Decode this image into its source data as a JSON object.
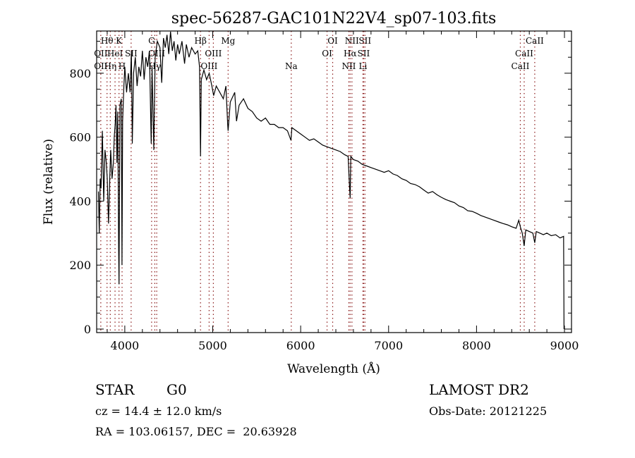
{
  "chart_data": {
    "type": "line",
    "title": "spec-56287-GAC101N22V4_sp07-103.fits",
    "xlabel": "Wavelength (Å)",
    "ylabel": "Flux (relative)",
    "xlim": [
      3680,
      9080
    ],
    "ylim": [
      -11,
      932
    ],
    "xticks": [
      4000,
      5000,
      6000,
      7000,
      8000,
      9000
    ],
    "yticks": [
      0,
      200,
      400,
      600,
      800
    ],
    "grid": false,
    "line_color": "#000000",
    "marker_color": "#8b1a1a",
    "series": [
      {
        "name": "spectrum",
        "points": [
          [
            3700,
            430
          ],
          [
            3710,
            300
          ],
          [
            3720,
            470
          ],
          [
            3730,
            440
          ],
          [
            3745,
            620
          ],
          [
            3760,
            400
          ],
          [
            3775,
            560
          ],
          [
            3790,
            520
          ],
          [
            3800,
            470
          ],
          [
            3815,
            330
          ],
          [
            3830,
            480
          ],
          [
            3840,
            560
          ],
          [
            3855,
            470
          ],
          [
            3870,
            520
          ],
          [
            3880,
            600
          ],
          [
            3890,
            640
          ],
          [
            3900,
            700
          ],
          [
            3910,
            520
          ],
          [
            3920,
            680
          ],
          [
            3930,
            240
          ],
          [
            3934,
            140
          ],
          [
            3945,
            700
          ],
          [
            3960,
            720
          ],
          [
            3968,
            200
          ],
          [
            3975,
            650
          ],
          [
            3990,
            760
          ],
          [
            4000,
            820
          ],
          [
            4020,
            740
          ],
          [
            4040,
            800
          ],
          [
            4060,
            740
          ],
          [
            4075,
            870
          ],
          [
            4085,
            580
          ],
          [
            4100,
            800
          ],
          [
            4120,
            850
          ],
          [
            4140,
            760
          ],
          [
            4160,
            820
          ],
          [
            4180,
            790
          ],
          [
            4200,
            870
          ],
          [
            4220,
            780
          ],
          [
            4240,
            850
          ],
          [
            4260,
            820
          ],
          [
            4280,
            870
          ],
          [
            4300,
            580
          ],
          [
            4310,
            820
          ],
          [
            4330,
            560
          ],
          [
            4345,
            850
          ],
          [
            4370,
            900
          ],
          [
            4400,
            880
          ],
          [
            4420,
            770
          ],
          [
            4440,
            910
          ],
          [
            4460,
            880
          ],
          [
            4480,
            920
          ],
          [
            4500,
            860
          ],
          [
            4520,
            930
          ],
          [
            4540,
            870
          ],
          [
            4560,
            900
          ],
          [
            4580,
            840
          ],
          [
            4600,
            890
          ],
          [
            4620,
            860
          ],
          [
            4650,
            900
          ],
          [
            4680,
            830
          ],
          [
            4700,
            890
          ],
          [
            4730,
            850
          ],
          [
            4760,
            880
          ],
          [
            4800,
            860
          ],
          [
            4830,
            870
          ],
          [
            4850,
            820
          ],
          [
            4861,
            540
          ],
          [
            4870,
            780
          ],
          [
            4900,
            810
          ],
          [
            4930,
            780
          ],
          [
            4960,
            800
          ],
          [
            4990,
            760
          ],
          [
            5010,
            730
          ],
          [
            5040,
            760
          ],
          [
            5080,
            740
          ],
          [
            5120,
            720
          ],
          [
            5150,
            760
          ],
          [
            5170,
            640
          ],
          [
            5175,
            620
          ],
          [
            5200,
            710
          ],
          [
            5250,
            740
          ],
          [
            5270,
            650
          ],
          [
            5300,
            700
          ],
          [
            5350,
            720
          ],
          [
            5400,
            690
          ],
          [
            5450,
            680
          ],
          [
            5500,
            660
          ],
          [
            5550,
            650
          ],
          [
            5600,
            660
          ],
          [
            5650,
            640
          ],
          [
            5700,
            640
          ],
          [
            5750,
            630
          ],
          [
            5800,
            630
          ],
          [
            5850,
            620
          ],
          [
            5890,
            590
          ],
          [
            5900,
            630
          ],
          [
            5950,
            620
          ],
          [
            6000,
            610
          ],
          [
            6050,
            600
          ],
          [
            6100,
            590
          ],
          [
            6150,
            595
          ],
          [
            6200,
            585
          ],
          [
            6250,
            575
          ],
          [
            6300,
            570
          ],
          [
            6350,
            565
          ],
          [
            6400,
            560
          ],
          [
            6450,
            555
          ],
          [
            6500,
            545
          ],
          [
            6540,
            540
          ],
          [
            6555,
            450
          ],
          [
            6563,
            410
          ],
          [
            6570,
            540
          ],
          [
            6600,
            530
          ],
          [
            6650,
            525
          ],
          [
            6700,
            515
          ],
          [
            6750,
            510
          ],
          [
            6800,
            505
          ],
          [
            6850,
            500
          ],
          [
            6900,
            495
          ],
          [
            6950,
            490
          ],
          [
            7000,
            495
          ],
          [
            7050,
            485
          ],
          [
            7100,
            480
          ],
          [
            7150,
            470
          ],
          [
            7200,
            465
          ],
          [
            7250,
            455
          ],
          [
            7300,
            452
          ],
          [
            7350,
            445
          ],
          [
            7400,
            435
          ],
          [
            7450,
            425
          ],
          [
            7500,
            430
          ],
          [
            7550,
            420
          ],
          [
            7600,
            412
          ],
          [
            7650,
            405
          ],
          [
            7700,
            400
          ],
          [
            7750,
            395
          ],
          [
            7800,
            385
          ],
          [
            7850,
            380
          ],
          [
            7900,
            370
          ],
          [
            7950,
            368
          ],
          [
            8000,
            362
          ],
          [
            8050,
            355
          ],
          [
            8100,
            350
          ],
          [
            8150,
            345
          ],
          [
            8200,
            340
          ],
          [
            8250,
            335
          ],
          [
            8300,
            330
          ],
          [
            8350,
            326
          ],
          [
            8400,
            320
          ],
          [
            8450,
            315
          ],
          [
            8480,
            340
          ],
          [
            8500,
            318
          ],
          [
            8520,
            300
          ],
          [
            8542,
            260
          ],
          [
            8560,
            310
          ],
          [
            8600,
            305
          ],
          [
            8640,
            300
          ],
          [
            8662,
            270
          ],
          [
            8680,
            305
          ],
          [
            8720,
            300
          ],
          [
            8760,
            295
          ],
          [
            8800,
            300
          ],
          [
            8850,
            292
          ],
          [
            8900,
            295
          ],
          [
            8950,
            285
          ],
          [
            8990,
            290
          ],
          [
            8995,
            0
          ]
        ]
      }
    ],
    "line_markers": [
      {
        "label": "Hθ",
        "wavelength": 3798,
        "row": 1
      },
      {
        "label": "K",
        "wavelength": 3934,
        "row": 1
      },
      {
        "label": "G",
        "wavelength": 4305,
        "row": 1
      },
      {
        "label": "Hβ",
        "wavelength": 4861,
        "row": 1
      },
      {
        "label": "Mg",
        "wavelength": 5175,
        "row": 1
      },
      {
        "label": "OI",
        "wavelength": 6364,
        "row": 1
      },
      {
        "label": "NII",
        "wavelength": 6583,
        "row": 1
      },
      {
        "label": "SII",
        "wavelength": 6731,
        "row": 1
      },
      {
        "label": "CaII",
        "wavelength": 8662,
        "row": 1
      },
      {
        "label": "OII",
        "wavelength": 3727,
        "row": 2
      },
      {
        "label": "HeI",
        "wavelength": 3889,
        "row": 2
      },
      {
        "label": "SII",
        "wavelength": 4072,
        "row": 2
      },
      {
        "label": "OIII",
        "wavelength": 4363,
        "row": 2
      },
      {
        "label": "OIII",
        "wavelength": 5007,
        "row": 2
      },
      {
        "label": "OI",
        "wavelength": 6300,
        "row": 2
      },
      {
        "label": "Hα",
        "wavelength": 6563,
        "row": 2
      },
      {
        "label": "SII",
        "wavelength": 6716,
        "row": 2
      },
      {
        "label": "CaII",
        "wavelength": 8542,
        "row": 2
      },
      {
        "label": "OII",
        "wavelength": 3727,
        "row": 3
      },
      {
        "label": "Hη",
        "wavelength": 3835,
        "row": 3
      },
      {
        "label": "H",
        "wavelength": 3969,
        "row": 3
      },
      {
        "label": "Hγ",
        "wavelength": 4341,
        "row": 3
      },
      {
        "label": "OIII",
        "wavelength": 4959,
        "row": 3
      },
      {
        "label": "Na",
        "wavelength": 5893,
        "row": 3
      },
      {
        "label": "NII",
        "wavelength": 6548,
        "row": 3
      },
      {
        "label": "Li",
        "wavelength": 6708,
        "row": 3
      },
      {
        "label": "CaII",
        "wavelength": 8498,
        "row": 3
      }
    ]
  },
  "info": {
    "object_class": "STAR",
    "subclass": "G0",
    "survey": "LAMOST DR2",
    "redshift": "cz = 14.4 ± 12.0 km/s",
    "obs_date": "Obs-Date: 20121225",
    "coords": "RA = 103.06157, DEC =  20.63928"
  }
}
